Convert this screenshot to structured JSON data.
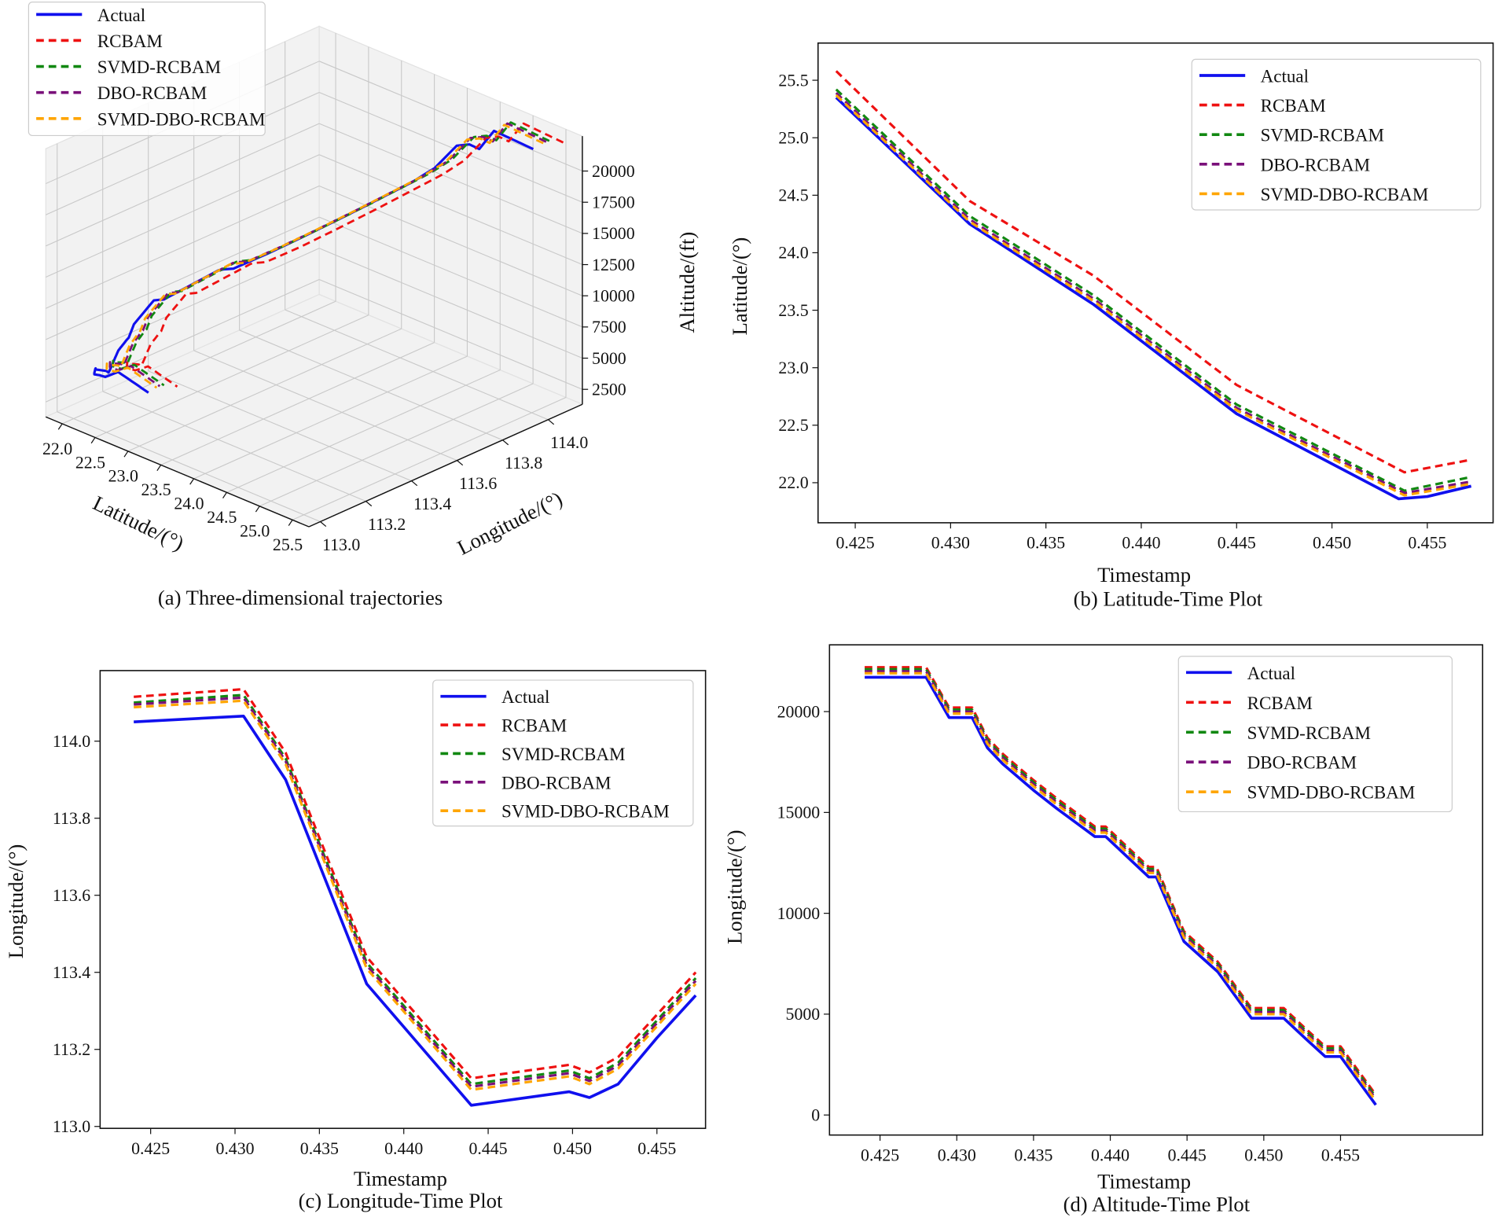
{
  "colors": {
    "Actual": "#1010ee",
    "RCBAM": "#ee1111",
    "SVMD-RCBAM": "#118811",
    "DBO-RCBAM": "#7a107a",
    "SVMD-DBO-RCBAM": "#ffa500"
  },
  "chart_data": [
    {
      "id": "a",
      "type": "line3d",
      "caption": "(a) Three-dimensional trajectories",
      "xlabel": "Latitude/(°)",
      "ylabel": "Longitude/(°)",
      "zlabel": "Altitude/(ft)",
      "xticks": [
        "22.0",
        "22.5",
        "23.0",
        "23.5",
        "24.0",
        "24.5",
        "25.0",
        "25.5"
      ],
      "yticks": [
        "113.0",
        "113.2",
        "113.4",
        "113.6",
        "113.8",
        "114.0"
      ],
      "zticks": [
        "2500",
        "5000",
        "7500",
        "10000",
        "12500",
        "15000",
        "17500",
        "20000"
      ],
      "legend": [
        "Actual",
        "RCBAM",
        "SVMD-RCBAM",
        "DBO-RCBAM",
        "SVMD-DBO-RCBAM"
      ],
      "legend_position": "top-left",
      "series_source": "combined latitude, longitude and altitude series of panels b, c, d"
    },
    {
      "id": "b",
      "type": "line",
      "caption": "(b) Latitude-Time Plot",
      "xlabel": "Timestamp",
      "ylabel": "Latitude/(°)",
      "xlim": [
        0.4225,
        0.4585
      ],
      "ylim": [
        21.7,
        25.7
      ],
      "xticks": [
        "0.425",
        "0.430",
        "0.435",
        "0.440",
        "0.445",
        "0.450",
        "0.455"
      ],
      "yticks": [
        "22.0",
        "22.5",
        "23.0",
        "23.5",
        "24.0",
        "24.5",
        "25.0",
        "25.5"
      ],
      "legend_position": "top-right",
      "series": [
        {
          "name": "Actual",
          "x": [
            0.424,
            0.431,
            0.4375,
            0.445,
            0.4535,
            0.455,
            0.4573
          ],
          "y": [
            25.35,
            24.25,
            23.55,
            22.6,
            21.86,
            21.88,
            21.97
          ]
        },
        {
          "name": "RCBAM",
          "x": [
            0.424,
            0.431,
            0.4375,
            0.445,
            0.4538,
            0.4573
          ],
          "y": [
            25.58,
            24.45,
            23.8,
            22.85,
            22.09,
            22.2
          ]
        },
        {
          "name": "SVMD-RCBAM",
          "x": [
            0.424,
            0.431,
            0.4375,
            0.445,
            0.4538,
            0.4573
          ],
          "y": [
            25.42,
            24.32,
            23.63,
            22.68,
            21.93,
            22.05
          ]
        },
        {
          "name": "DBO-RCBAM",
          "x": [
            0.424,
            0.431,
            0.4375,
            0.445,
            0.4538,
            0.4573
          ],
          "y": [
            25.39,
            24.29,
            23.6,
            22.65,
            21.91,
            22.01
          ]
        },
        {
          "name": "SVMD-DBO-RCBAM",
          "x": [
            0.424,
            0.431,
            0.4375,
            0.445,
            0.4538,
            0.4573
          ],
          "y": [
            25.37,
            24.27,
            23.58,
            22.63,
            21.89,
            21.99
          ]
        }
      ]
    },
    {
      "id": "c",
      "type": "line",
      "caption": "(c) Longitude-Time Plot",
      "xlabel": "Timestamp",
      "ylabel": "Longitude/(°)",
      "xlim": [
        0.4225,
        0.4585
      ],
      "ylim": [
        113.0,
        114.17
      ],
      "xticks": [
        "0.425",
        "0.430",
        "0.435",
        "0.440",
        "0.445",
        "0.450",
        "0.455"
      ],
      "yticks": [
        "113.0",
        "113.2",
        "113.4",
        "113.6",
        "113.8",
        "114.0"
      ],
      "legend_position": "top-right",
      "series": [
        {
          "name": "Actual",
          "x": [
            0.424,
            0.4305,
            0.433,
            0.4378,
            0.444,
            0.4498,
            0.451,
            0.4527,
            0.455,
            0.4573
          ],
          "y": [
            114.05,
            114.065,
            113.9,
            113.37,
            113.055,
            113.09,
            113.075,
            113.11,
            113.23,
            113.34
          ]
        },
        {
          "name": "RCBAM",
          "x": [
            0.424,
            0.4305,
            0.433,
            0.4378,
            0.444,
            0.4498,
            0.451,
            0.4527,
            0.455,
            0.4573
          ],
          "y": [
            114.115,
            114.135,
            113.97,
            113.44,
            113.125,
            113.16,
            113.14,
            113.18,
            113.29,
            113.4
          ]
        },
        {
          "name": "SVMD-RCBAM",
          "x": [
            0.424,
            0.4305,
            0.433,
            0.4378,
            0.444,
            0.4498,
            0.451,
            0.4527,
            0.455,
            0.4573
          ],
          "y": [
            114.1,
            114.12,
            113.955,
            113.425,
            113.11,
            113.145,
            113.125,
            113.165,
            113.275,
            113.385
          ]
        },
        {
          "name": "DBO-RCBAM",
          "x": [
            0.424,
            0.4305,
            0.433,
            0.4378,
            0.444,
            0.4498,
            0.451,
            0.4527,
            0.455,
            0.4573
          ],
          "y": [
            114.095,
            114.113,
            113.948,
            113.418,
            113.103,
            113.138,
            113.118,
            113.158,
            113.268,
            113.378
          ]
        },
        {
          "name": "SVMD-DBO-RCBAM",
          "x": [
            0.424,
            0.4305,
            0.433,
            0.4378,
            0.444,
            0.4498,
            0.451,
            0.4527,
            0.455,
            0.4573
          ],
          "y": [
            114.088,
            114.105,
            113.94,
            113.41,
            113.095,
            113.13,
            113.11,
            113.15,
            113.26,
            113.37
          ]
        }
      ]
    },
    {
      "id": "d",
      "type": "line",
      "caption": "(d) Altitude-Time Plot",
      "xlabel": "Timestamp",
      "ylabel": "Longitude/(°)",
      "xlim": [
        0.4225,
        0.4585
      ],
      "ylim": [
        -500,
        23300
      ],
      "xticks": [
        "0.425",
        "0.430",
        "0.435",
        "0.440",
        "0.445",
        "0.450",
        "0.455"
      ],
      "yticks": [
        "0",
        "5000",
        "10000",
        "15000",
        "20000"
      ],
      "legend_position": "top-right",
      "series": [
        {
          "name": "Actual",
          "x": [
            0.424,
            0.428,
            0.4295,
            0.431,
            0.432,
            0.433,
            0.435,
            0.4365,
            0.439,
            0.4397,
            0.4425,
            0.443,
            0.4448,
            0.447,
            0.4492,
            0.4513,
            0.4527,
            0.454,
            0.455,
            0.4573
          ],
          "y": [
            21700,
            21700,
            19700,
            19700,
            18200,
            17400,
            16100,
            15200,
            13800,
            13800,
            11800,
            11800,
            8600,
            7100,
            4800,
            4800,
            3800,
            2900,
            2900,
            500
          ]
        },
        {
          "name": "RCBAM",
          "x": [
            0.424,
            0.428,
            0.4295,
            0.431,
            0.432,
            0.433,
            0.435,
            0.4365,
            0.439,
            0.4397,
            0.4425,
            0.443,
            0.4448,
            0.447,
            0.4492,
            0.4513,
            0.4527,
            0.454,
            0.455,
            0.4573
          ],
          "y": [
            22200,
            22200,
            20200,
            20200,
            18700,
            17900,
            16600,
            15700,
            14300,
            14300,
            12300,
            12300,
            9100,
            7600,
            5300,
            5300,
            4300,
            3400,
            3400,
            1000
          ]
        },
        {
          "name": "SVMD-RCBAM",
          "x": [
            0.424,
            0.428,
            0.4295,
            0.431,
            0.432,
            0.433,
            0.435,
            0.4365,
            0.439,
            0.4397,
            0.4425,
            0.443,
            0.4448,
            0.447,
            0.4492,
            0.4513,
            0.4527,
            0.454,
            0.455,
            0.4573
          ],
          "y": [
            22100,
            22100,
            20100,
            20100,
            18600,
            17800,
            16500,
            15600,
            14200,
            14200,
            12200,
            12200,
            9000,
            7500,
            5200,
            5200,
            4200,
            3300,
            3300,
            900
          ]
        },
        {
          "name": "DBO-RCBAM",
          "x": [
            0.424,
            0.428,
            0.4295,
            0.431,
            0.432,
            0.433,
            0.435,
            0.4365,
            0.439,
            0.4397,
            0.4425,
            0.443,
            0.4448,
            0.447,
            0.4492,
            0.4513,
            0.4527,
            0.454,
            0.455,
            0.4573
          ],
          "y": [
            22000,
            22000,
            20000,
            20000,
            18500,
            17700,
            16400,
            15500,
            14100,
            14100,
            12100,
            12100,
            8900,
            7400,
            5100,
            5100,
            4100,
            3200,
            3200,
            800
          ]
        },
        {
          "name": "SVMD-DBO-RCBAM",
          "x": [
            0.424,
            0.428,
            0.4295,
            0.431,
            0.432,
            0.433,
            0.435,
            0.4365,
            0.439,
            0.4397,
            0.4425,
            0.443,
            0.4448,
            0.447,
            0.4492,
            0.4513,
            0.4527,
            0.454,
            0.455,
            0.4573
          ],
          "y": [
            21900,
            21900,
            19900,
            19900,
            18400,
            17600,
            16300,
            15400,
            14000,
            14000,
            12000,
            12000,
            8800,
            7300,
            5000,
            5000,
            4000,
            3100,
            3100,
            700
          ]
        }
      ]
    }
  ]
}
